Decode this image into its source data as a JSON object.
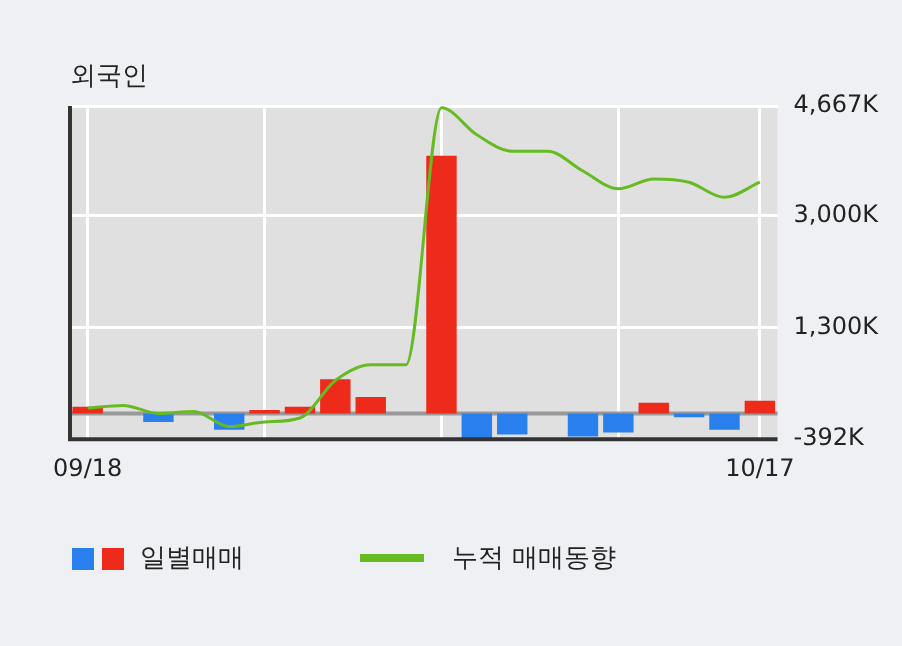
{
  "chart_data": {
    "type": "bar",
    "title": "외국인",
    "categories": [
      "09/18",
      null,
      null,
      null,
      null,
      null,
      null,
      null,
      null,
      null,
      null,
      null,
      null,
      null,
      null,
      null,
      null,
      null,
      null,
      "10/17"
    ],
    "series": [
      {
        "name": "일별매매",
        "colors": [
          "#ee2a1a",
          "#ee2a1a",
          "#2a7fef",
          "#ee2a1a",
          "#2a7fef",
          "#ee2a1a",
          "#ee2a1a",
          "#ee2a1a",
          "#ee2a1a",
          "#ee2a1a",
          "#ee2a1a",
          "#2a7fef",
          "#2a7fef",
          "#ee2a1a",
          "#2a7fef",
          "#2a7fef",
          "#ee2a1a",
          "#2a7fef",
          "#2a7fef",
          "#ee2a1a"
        ],
        "values": [
          100,
          0,
          -130,
          0,
          -250,
          50,
          100,
          520,
          250,
          0,
          3910,
          -390,
          -320,
          0,
          -350,
          -290,
          160,
          -60,
          -250,
          190
        ]
      },
      {
        "type": "line",
        "name": "누적 매매동향",
        "color": "#66bb22",
        "values": [
          80,
          120,
          0,
          30,
          -200,
          -130,
          -70,
          500,
          740,
          740,
          4640,
          4230,
          3980,
          3980,
          3680,
          3410,
          3560,
          3510,
          3280,
          3510
        ]
      }
    ],
    "ylim": [
      -392,
      4667
    ],
    "yticks": [
      {
        "value": -392,
        "label": "-392K"
      },
      {
        "value": 1300,
        "label": "1,300K"
      },
      {
        "value": 3000,
        "label": "3,000K"
      },
      {
        "value": 4667,
        "label": "4,667K"
      }
    ],
    "ref_lines": [
      {
        "axis": "y",
        "value": 0,
        "color": "#999999"
      }
    ],
    "grid": true,
    "legend": "bottom",
    "marker": "none",
    "line_style": "solid"
  }
}
